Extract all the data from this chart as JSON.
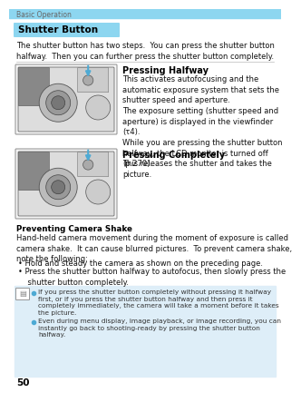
{
  "page_bg": "#ffffff",
  "top_bar_color": "#8dd6f0",
  "header_text": "Basic Operation",
  "header_fontsize": 5.5,
  "header_color": "#666666",
  "section_box_color": "#8dd6f0",
  "section_title": "Shutter Button",
  "section_title_fontsize": 7.5,
  "intro_text": "The shutter button has two steps.  You can press the shutter button\nhalfway.  Then you can further press the shutter button completely.",
  "intro_fontsize": 6.0,
  "divider_color": "#bbbbbb",
  "pressing_halfway_title": "Pressing Halfway",
  "pressing_halfway_title_fontsize": 7.0,
  "pressing_halfway_text": "This activates autofocusing and the\nautomatic exposure system that sets the\nshutter speed and aperture.\nThe exposure setting (shutter speed and\naperture) is displayed in the viewfinder\n(τ4).\nWhile you are pressing the shutter button\nhalfway, the LCD monitor is turned off\n(p.270).",
  "pressing_completely_title": "Pressing Completely",
  "pressing_completely_title_fontsize": 7.0,
  "pressing_completely_text": "This releases the shutter and takes the\npicture.",
  "body_fontsize": 6.0,
  "preventing_title": "Preventing Camera Shake",
  "preventing_title_fontsize": 6.3,
  "preventing_text": "Hand-held camera movement during the moment of exposure is called\ncamera shake.  It can cause blurred pictures.  To prevent camera shake,\nnote the following:",
  "bullet1": "Hold and steady the camera as shown on the preceding page.",
  "bullet2": "Press the shutter button halfway to autofocus, then slowly press the\n    shutter button completely.",
  "note_bg": "#deeef8",
  "note_text1": "If you press the shutter button completely without pressing it halfway\nfirst, or if you press the shutter button halfway and then press it\ncompletely immediately, the camera will take a moment before it takes\nthe picture.",
  "note_text2": "Even during menu display, image playback, or image recording, you can\ninstantly go back to shooting-ready by pressing the shutter button\nhalfway.",
  "note_fontsize": 5.3,
  "note_dot_color": "#4daad4",
  "page_number": "50",
  "page_number_fontsize": 7.5,
  "camera_box_color": "#eeeeee",
  "camera_outline_color": "#aaaaaa",
  "arrow_color": "#4daad4"
}
